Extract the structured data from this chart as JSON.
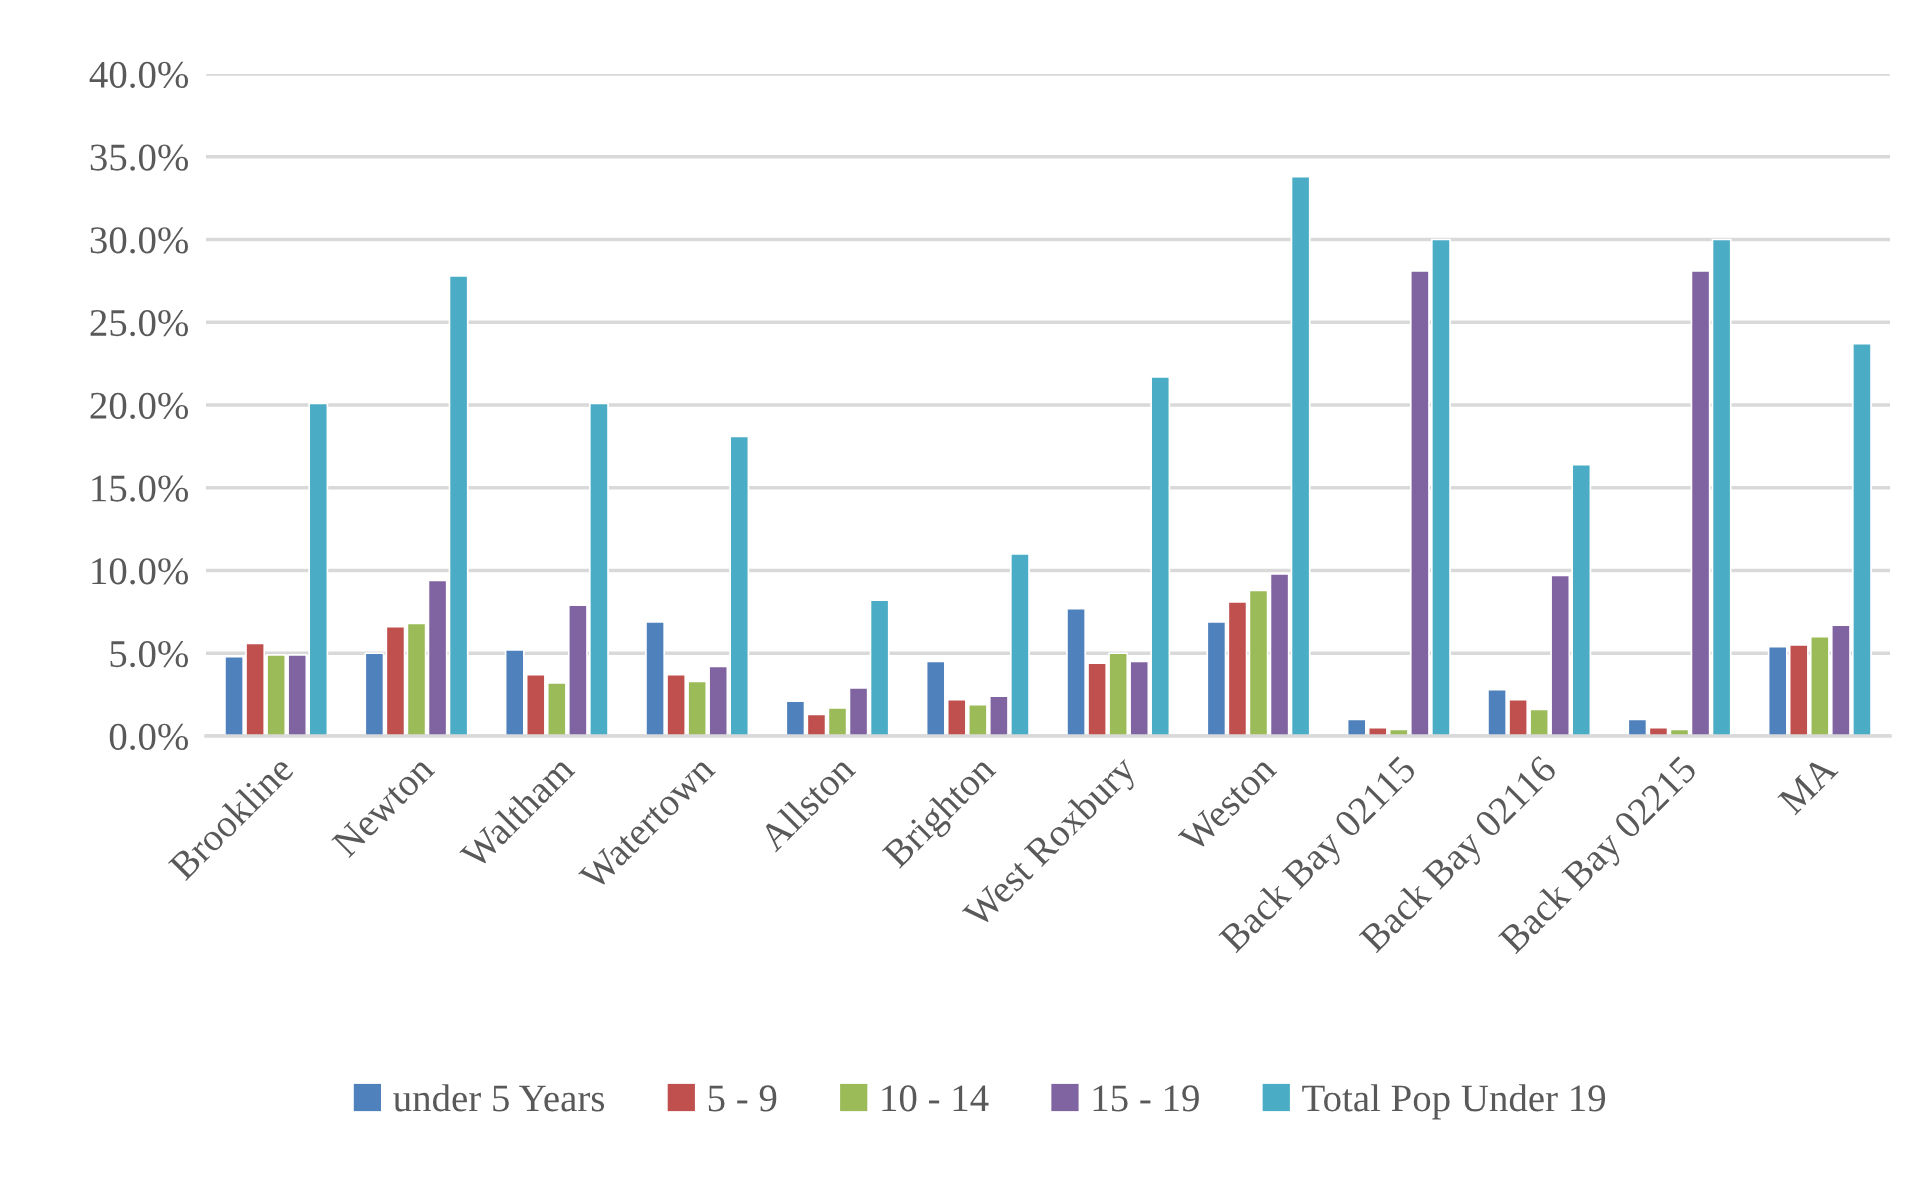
{
  "chart_data": {
    "type": "bar",
    "categories": [
      "Brookline",
      "Newton",
      "Waltham",
      "Watertown",
      "Allston",
      "Brighton",
      "West Roxbury",
      "Weston",
      "Back Bay 02115",
      "Back Bay 02116",
      "Back Bay 02215",
      "MA"
    ],
    "series": [
      {
        "name": "under 5 Years",
        "color": "#4f81bd",
        "values": [
          4.8,
          5.0,
          5.2,
          6.9,
          2.1,
          4.5,
          7.7,
          6.9,
          1.0,
          2.8,
          1.0,
          5.4
        ]
      },
      {
        "name": "5 - 9",
        "color": "#c0504d",
        "values": [
          5.6,
          6.6,
          3.7,
          3.7,
          1.3,
          2.2,
          4.4,
          8.1,
          0.5,
          2.2,
          0.5,
          5.5
        ]
      },
      {
        "name": "10 - 14",
        "color": "#9bbb59",
        "values": [
          4.9,
          6.8,
          3.2,
          3.3,
          1.7,
          1.9,
          5.0,
          8.8,
          0.4,
          1.6,
          0.4,
          6.0
        ]
      },
      {
        "name": "15 - 19",
        "color": "#8064a2",
        "values": [
          4.9,
          9.4,
          7.9,
          4.2,
          2.9,
          2.4,
          4.5,
          9.8,
          28.1,
          9.7,
          28.1,
          6.7
        ]
      },
      {
        "name": "Total Pop Under 19",
        "color": "#4bacc6",
        "values": [
          20.1,
          27.8,
          20.1,
          18.1,
          8.2,
          11.0,
          21.7,
          33.8,
          30.0,
          16.4,
          30.0,
          23.7
        ]
      }
    ],
    "ylim": [
      0,
      40
    ],
    "yticks": [
      {
        "value": 0,
        "label": "0.0%"
      },
      {
        "value": 5,
        "label": "5.0%"
      },
      {
        "value": 10,
        "label": "10.0%"
      },
      {
        "value": 15,
        "label": "15.0%"
      },
      {
        "value": 20,
        "label": "20.0%"
      },
      {
        "value": 25,
        "label": "25.0%"
      },
      {
        "value": 30,
        "label": "30.0%"
      },
      {
        "value": 35,
        "label": "35.0%"
      },
      {
        "value": 40,
        "label": "40.0%"
      }
    ],
    "grid": "y",
    "legend": "bottom"
  }
}
